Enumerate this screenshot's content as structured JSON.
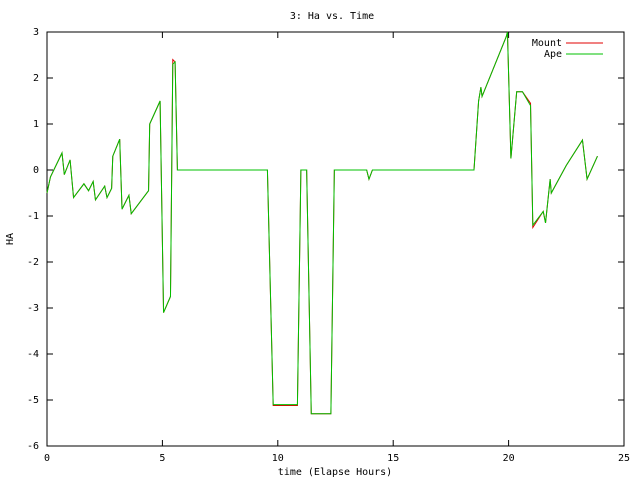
{
  "chart_data": {
    "type": "line",
    "title": "3: Ha vs. Time",
    "x_label": "time (Elapse Hours)",
    "y_label": "HA",
    "x": [
      0,
      0.15,
      0.65,
      0.75,
      1.0,
      1.15,
      1.6,
      1.8,
      2.0,
      2.1,
      2.5,
      2.6,
      2.8,
      2.85,
      3.15,
      3.25,
      3.55,
      3.65,
      4.4,
      4.45,
      4.9,
      5.05,
      5.35,
      5.45,
      5.55,
      5.65,
      9.55,
      9.8,
      10.85,
      11.0,
      11.25,
      11.45,
      12.3,
      12.45,
      13.85,
      13.95,
      14.1,
      18.5,
      18.7,
      18.8,
      18.85,
      19.9,
      19.95,
      20.1,
      20.35,
      20.6,
      20.95,
      21.05,
      21.5,
      21.6,
      21.8,
      21.85,
      22.5,
      23.2,
      23.4,
      23.85
    ],
    "series": [
      {
        "name": "Mount",
        "color": "#e00000",
        "values": [
          -0.5,
          -0.15,
          0.37,
          -0.1,
          0.22,
          -0.6,
          -0.3,
          -0.45,
          -0.25,
          -0.65,
          -0.35,
          -0.6,
          -0.4,
          0.3,
          0.67,
          -0.85,
          -0.55,
          -0.95,
          -0.45,
          1.0,
          1.5,
          -3.1,
          -2.75,
          2.4,
          2.35,
          0,
          0,
          -5.12,
          -5.12,
          0,
          0,
          -5.3,
          -5.3,
          0,
          0,
          -0.2,
          0,
          0,
          1.5,
          1.8,
          1.6,
          2.9,
          3.0,
          0.25,
          1.7,
          1.7,
          1.45,
          -1.25,
          -0.9,
          -1.15,
          -0.2,
          -0.5,
          0.1,
          0.65,
          -0.2,
          0.3
        ]
      },
      {
        "name": "Ape",
        "color": "#00c000",
        "values": [
          -0.5,
          -0.15,
          0.37,
          -0.1,
          0.22,
          -0.6,
          -0.3,
          -0.45,
          -0.25,
          -0.65,
          -0.35,
          -0.6,
          -0.4,
          0.3,
          0.67,
          -0.85,
          -0.55,
          -0.95,
          -0.45,
          1.0,
          1.5,
          -3.1,
          -2.75,
          2.3,
          2.35,
          0,
          0,
          -5.1,
          -5.1,
          0,
          0,
          -5.3,
          -5.3,
          0,
          0,
          -0.2,
          0,
          0,
          1.5,
          1.8,
          1.6,
          2.9,
          3.0,
          0.25,
          1.7,
          1.7,
          1.4,
          -1.2,
          -0.9,
          -1.15,
          -0.2,
          -0.5,
          0.1,
          0.65,
          -0.2,
          0.3
        ]
      }
    ],
    "xlim": [
      0,
      25
    ],
    "xticks": [
      0,
      5,
      10,
      15,
      20,
      25
    ],
    "ylim": [
      -6,
      3
    ],
    "yticks": [
      -6,
      -5,
      -4,
      -3,
      -2,
      -1,
      0,
      1,
      2,
      3
    ],
    "legend": "top-right",
    "grid": false
  }
}
